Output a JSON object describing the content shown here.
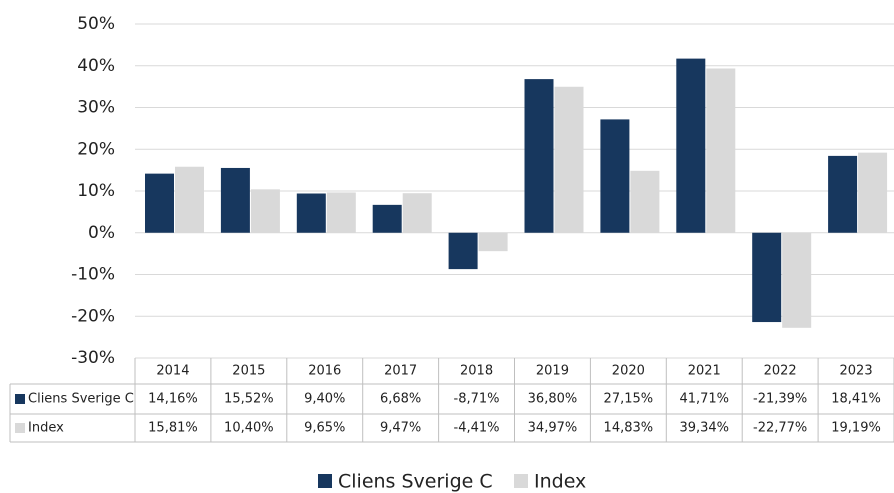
{
  "chart_data": {
    "type": "bar",
    "categories": [
      "2014",
      "2015",
      "2016",
      "2017",
      "2018",
      "2019",
      "2020",
      "2021",
      "2022",
      "2023"
    ],
    "series": [
      {
        "name": "Cliens Sverige C",
        "color": "#17375e",
        "values": [
          14.16,
          15.52,
          9.4,
          6.68,
          -8.71,
          36.8,
          27.15,
          41.71,
          -21.39,
          18.41
        ],
        "value_labels": [
          "14,16%",
          "15,52%",
          "9,40%",
          "6,68%",
          "-8,71%",
          "36,80%",
          "27,15%",
          "41,71%",
          "-21,39%",
          "18,41%"
        ]
      },
      {
        "name": "Index",
        "color": "#d9d9d9",
        "values": [
          15.81,
          10.4,
          9.65,
          9.47,
          -4.41,
          34.97,
          14.83,
          39.34,
          -22.77,
          19.19
        ],
        "value_labels": [
          "15,81%",
          "10,40%",
          "9,65%",
          "9,47%",
          "-4,41%",
          "34,97%",
          "14,83%",
          "39,34%",
          "-22,77%",
          "19,19%"
        ]
      }
    ],
    "ylim": [
      -30,
      50
    ],
    "yticks": [
      {
        "value": -30,
        "label": "-30%"
      },
      {
        "value": -20,
        "label": "-20%"
      },
      {
        "value": -10,
        "label": "-10%"
      },
      {
        "value": 0,
        "label": "0%"
      },
      {
        "value": 10,
        "label": "10%"
      },
      {
        "value": 20,
        "label": "20%"
      },
      {
        "value": 30,
        "label": "30%"
      },
      {
        "value": 40,
        "label": "40%"
      },
      {
        "value": 50,
        "label": "50%"
      }
    ],
    "grid": true
  }
}
